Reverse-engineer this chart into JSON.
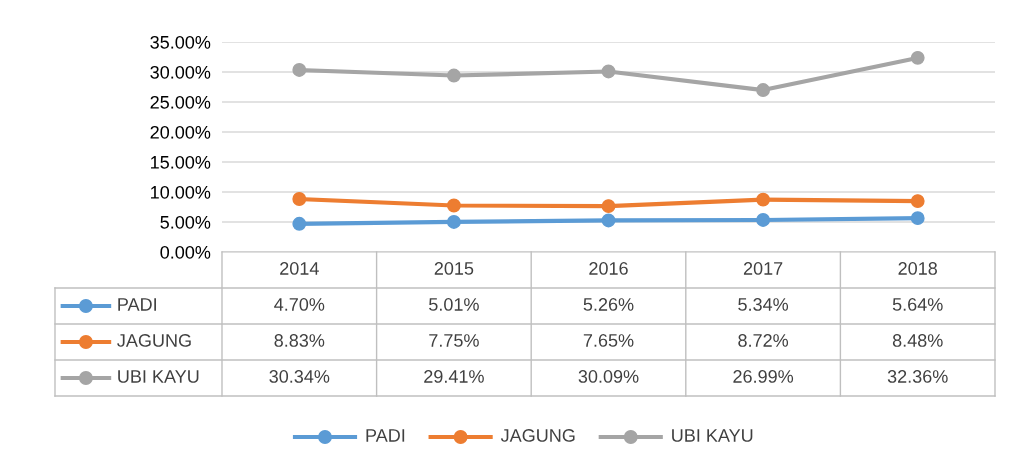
{
  "chart_data": {
    "type": "line",
    "categories": [
      "2014",
      "2015",
      "2016",
      "2017",
      "2018"
    ],
    "series": [
      {
        "name": "PADI",
        "color": "#5b9bd5",
        "values": [
          4.7,
          5.01,
          5.26,
          5.34,
          5.64
        ],
        "value_labels": [
          "4.70%",
          "5.01%",
          "5.26%",
          "5.34%",
          "5.64%"
        ]
      },
      {
        "name": "JAGUNG",
        "color": "#ed7d31",
        "values": [
          8.83,
          7.75,
          7.65,
          8.72,
          8.48
        ],
        "value_labels": [
          "8.83%",
          "7.75%",
          "7.65%",
          "8.72%",
          "8.48%"
        ]
      },
      {
        "name": "UBI KAYU",
        "color": "#a5a5a5",
        "values": [
          30.34,
          29.41,
          30.09,
          26.99,
          32.36
        ],
        "value_labels": [
          "30.34%",
          "29.41%",
          "30.09%",
          "26.99%",
          "32.36%"
        ]
      }
    ],
    "ylim": [
      0,
      35
    ],
    "yticks": [
      {
        "value": 0,
        "label": "0.00%"
      },
      {
        "value": 5,
        "label": "5.00%"
      },
      {
        "value": 10,
        "label": "10.00%"
      },
      {
        "value": 15,
        "label": "15.00%"
      },
      {
        "value": 20,
        "label": "20.00%"
      },
      {
        "value": 25,
        "label": "25.00%"
      },
      {
        "value": 30,
        "label": "30.00%"
      },
      {
        "value": 35,
        "label": "35.00%"
      }
    ],
    "grid": "y",
    "legend": "bottom",
    "marker": "circle",
    "line_style": "solid"
  }
}
